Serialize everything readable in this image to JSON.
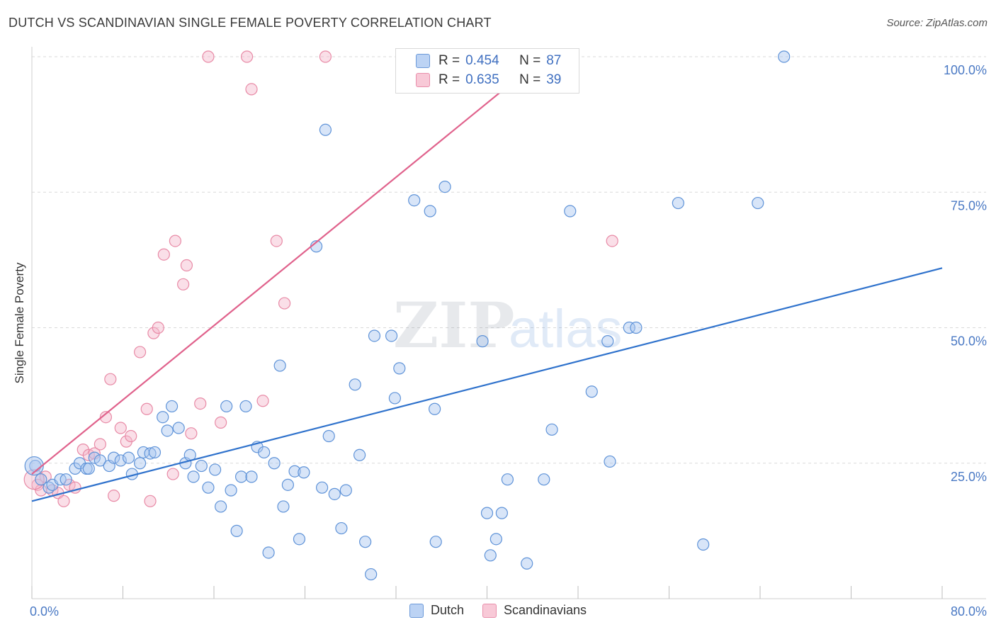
{
  "title": "DUTCH VS SCANDINAVIAN SINGLE FEMALE POVERTY CORRELATION CHART",
  "source": "Source: ZipAtlas.com",
  "watermark": {
    "zip": "ZIP",
    "atlas": "atlas"
  },
  "colors": {
    "dutch_fill": "#a9c6f0",
    "dutch_stroke": "#5f93d8",
    "dutch_line": "#2f72cc",
    "scand_fill": "#f5b9cb",
    "scand_stroke": "#e88aa6",
    "scand_line": "#e0628c",
    "axis_text": "#4a79c4",
    "grid": "#d9d9d9"
  },
  "legend": {
    "rows": [
      {
        "r_label": "R =",
        "r": "0.454",
        "n_label": "N =",
        "n": "87"
      },
      {
        "r_label": "R =",
        "r": "0.635",
        "n_label": "N =",
        "n": "39"
      }
    ]
  },
  "chart_data": {
    "type": "scatter",
    "xlabel": "",
    "ylabel": "Single Female Poverty",
    "xlim": [
      0,
      80
    ],
    "ylim": [
      0,
      100
    ],
    "x_ticks": [
      "0.0%",
      "80.0%"
    ],
    "y_ticks": [
      "25.0%",
      "50.0%",
      "75.0%",
      "100.0%"
    ],
    "y_tick_values": [
      25,
      50,
      75,
      100
    ],
    "series": [
      {
        "name": "Dutch",
        "trend": {
          "x": [
            0,
            80
          ],
          "y": [
            18.0,
            61.0
          ]
        },
        "points": [
          [
            0.3,
            24.5
          ],
          [
            0.8,
            22
          ],
          [
            1.5,
            20.5
          ],
          [
            1.8,
            21
          ],
          [
            2.5,
            22
          ],
          [
            3,
            22
          ],
          [
            3.8,
            24
          ],
          [
            4.2,
            25
          ],
          [
            4.8,
            24
          ],
          [
            5,
            24
          ],
          [
            5.5,
            26
          ],
          [
            6,
            25.5
          ],
          [
            6.8,
            24.5
          ],
          [
            7.2,
            26
          ],
          [
            7.8,
            25.5
          ],
          [
            8.5,
            26
          ],
          [
            8.8,
            23
          ],
          [
            9.5,
            25
          ],
          [
            9.8,
            27
          ],
          [
            10.4,
            26.8
          ],
          [
            10.8,
            27
          ],
          [
            11.5,
            33.5
          ],
          [
            11.9,
            31
          ],
          [
            12.3,
            35.5
          ],
          [
            12.9,
            31.5
          ],
          [
            13.5,
            25
          ],
          [
            13.9,
            26.5
          ],
          [
            14.2,
            22.5
          ],
          [
            14.9,
            24.5
          ],
          [
            15.5,
            20.5
          ],
          [
            16.1,
            23.8
          ],
          [
            16.6,
            17
          ],
          [
            17.1,
            35.5
          ],
          [
            17.5,
            20
          ],
          [
            18,
            12.5
          ],
          [
            18.4,
            22.5
          ],
          [
            18.8,
            35.5
          ],
          [
            19.3,
            22.5
          ],
          [
            19.8,
            28
          ],
          [
            20.4,
            27
          ],
          [
            20.8,
            8.5
          ],
          [
            21.3,
            25
          ],
          [
            21.8,
            43
          ],
          [
            22.1,
            17
          ],
          [
            22.5,
            21
          ],
          [
            23.1,
            23.5
          ],
          [
            23.5,
            11
          ],
          [
            23.9,
            23.3
          ],
          [
            25.5,
            20.5
          ],
          [
            25.8,
            86.5
          ],
          [
            26.1,
            30
          ],
          [
            26.6,
            19.3
          ],
          [
            27.2,
            13
          ],
          [
            27.6,
            20
          ],
          [
            28.4,
            39.5
          ],
          [
            28.8,
            26.5
          ],
          [
            29.3,
            10.5
          ],
          [
            29.8,
            4.5
          ],
          [
            30.1,
            48.5
          ],
          [
            31.6,
            48.5
          ],
          [
            31.9,
            37
          ],
          [
            32.3,
            42.5
          ],
          [
            33.6,
            73.5
          ],
          [
            35,
            71.5
          ],
          [
            35.4,
            35
          ],
          [
            35.5,
            10.5
          ],
          [
            36.3,
            76
          ],
          [
            39.6,
            47.5
          ],
          [
            40,
            15.8
          ],
          [
            40.3,
            8
          ],
          [
            40.8,
            11
          ],
          [
            41.3,
            15.8
          ],
          [
            41.8,
            22
          ],
          [
            43.5,
            6.5
          ],
          [
            45,
            22
          ],
          [
            45.7,
            31.2
          ],
          [
            47.3,
            71.5
          ],
          [
            49.2,
            38.2
          ],
          [
            50.6,
            47.5
          ],
          [
            50.8,
            25.3
          ],
          [
            52.5,
            50
          ],
          [
            53.1,
            50
          ],
          [
            56.8,
            73
          ],
          [
            59,
            10
          ],
          [
            63.8,
            73
          ],
          [
            66.1,
            100
          ],
          [
            25,
            65
          ]
        ]
      },
      {
        "name": "Scandinavians",
        "trend": {
          "x": [
            0,
            45
          ],
          "y": [
            23.0,
            100.0
          ]
        },
        "points": [
          [
            0.5,
            21
          ],
          [
            0.8,
            20
          ],
          [
            1.2,
            22.5
          ],
          [
            1.8,
            20
          ],
          [
            2.3,
            19.5
          ],
          [
            2.8,
            18
          ],
          [
            3.3,
            21
          ],
          [
            3.8,
            20.5
          ],
          [
            4.5,
            27.5
          ],
          [
            5,
            26.5
          ],
          [
            5.5,
            26.8
          ],
          [
            6,
            28.5
          ],
          [
            6.5,
            33.5
          ],
          [
            6.9,
            40.5
          ],
          [
            7.2,
            19
          ],
          [
            7.8,
            31.5
          ],
          [
            8.3,
            29
          ],
          [
            8.7,
            30
          ],
          [
            9.5,
            45.5
          ],
          [
            10.1,
            35
          ],
          [
            10.4,
            18
          ],
          [
            10.7,
            49
          ],
          [
            11.1,
            50
          ],
          [
            11.6,
            63.5
          ],
          [
            12.4,
            23
          ],
          [
            12.6,
            66
          ],
          [
            13.3,
            58
          ],
          [
            13.6,
            61.5
          ],
          [
            14,
            30.5
          ],
          [
            14.8,
            36
          ],
          [
            15.5,
            100
          ],
          [
            16.6,
            32.5
          ],
          [
            18.9,
            100
          ],
          [
            19.3,
            94
          ],
          [
            20.3,
            36.5
          ],
          [
            21.5,
            66
          ],
          [
            22.2,
            54.5
          ],
          [
            25.8,
            100
          ],
          [
            51,
            66
          ]
        ]
      }
    ]
  }
}
